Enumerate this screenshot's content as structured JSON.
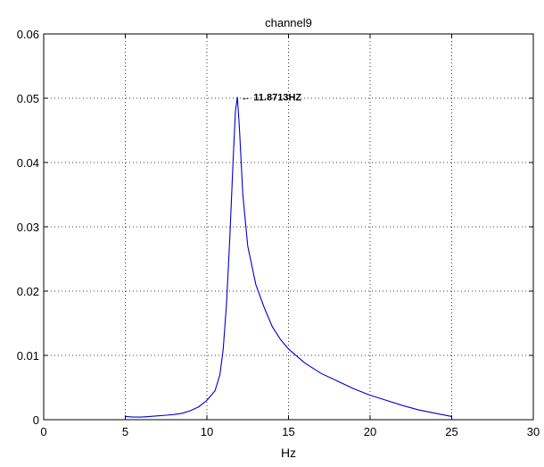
{
  "chart_data": {
    "type": "line",
    "title": "channel9",
    "xlabel": "Hz",
    "ylabel": "",
    "xlim": [
      0,
      30
    ],
    "ylim": [
      0,
      0.06
    ],
    "grid": true,
    "grid_style": "dotted",
    "xticks": [
      0,
      5,
      10,
      15,
      20,
      25,
      30
    ],
    "xtick_labels": [
      "0",
      "5",
      "10",
      "15",
      "20",
      "25",
      "30"
    ],
    "yticks": [
      0,
      0.01,
      0.02,
      0.03,
      0.04,
      0.05,
      0.06
    ],
    "ytick_labels": [
      "0",
      "0.01",
      "0.02",
      "0.03",
      "0.04",
      "0.05",
      "0.06"
    ],
    "series": [
      {
        "color": "#0000cc",
        "x": [
          5.0,
          5.5,
          6.0,
          6.5,
          7.0,
          7.5,
          8.0,
          8.5,
          9.0,
          9.5,
          10.0,
          10.5,
          10.8,
          11.0,
          11.2,
          11.4,
          11.6,
          11.75,
          11.87,
          12.0,
          12.2,
          12.5,
          13.0,
          13.5,
          14.0,
          14.5,
          15.0,
          16.0,
          17.0,
          18.0,
          19.0,
          20.0,
          21.0,
          22.0,
          23.0,
          24.0,
          25.0
        ],
        "y": [
          0.0005,
          0.0004,
          0.0004,
          0.0005,
          0.0006,
          0.0007,
          0.0008,
          0.001,
          0.0014,
          0.002,
          0.003,
          0.0045,
          0.007,
          0.011,
          0.018,
          0.028,
          0.04,
          0.048,
          0.0502,
          0.045,
          0.035,
          0.027,
          0.021,
          0.0175,
          0.0145,
          0.0125,
          0.011,
          0.0088,
          0.0072,
          0.006,
          0.0048,
          0.0038,
          0.003,
          0.0022,
          0.0015,
          0.001,
          0.0005
        ]
      }
    ],
    "annotations": [
      {
        "text": "← 11.8713HZ",
        "x": 11.8713,
        "y": 0.0502
      }
    ]
  }
}
